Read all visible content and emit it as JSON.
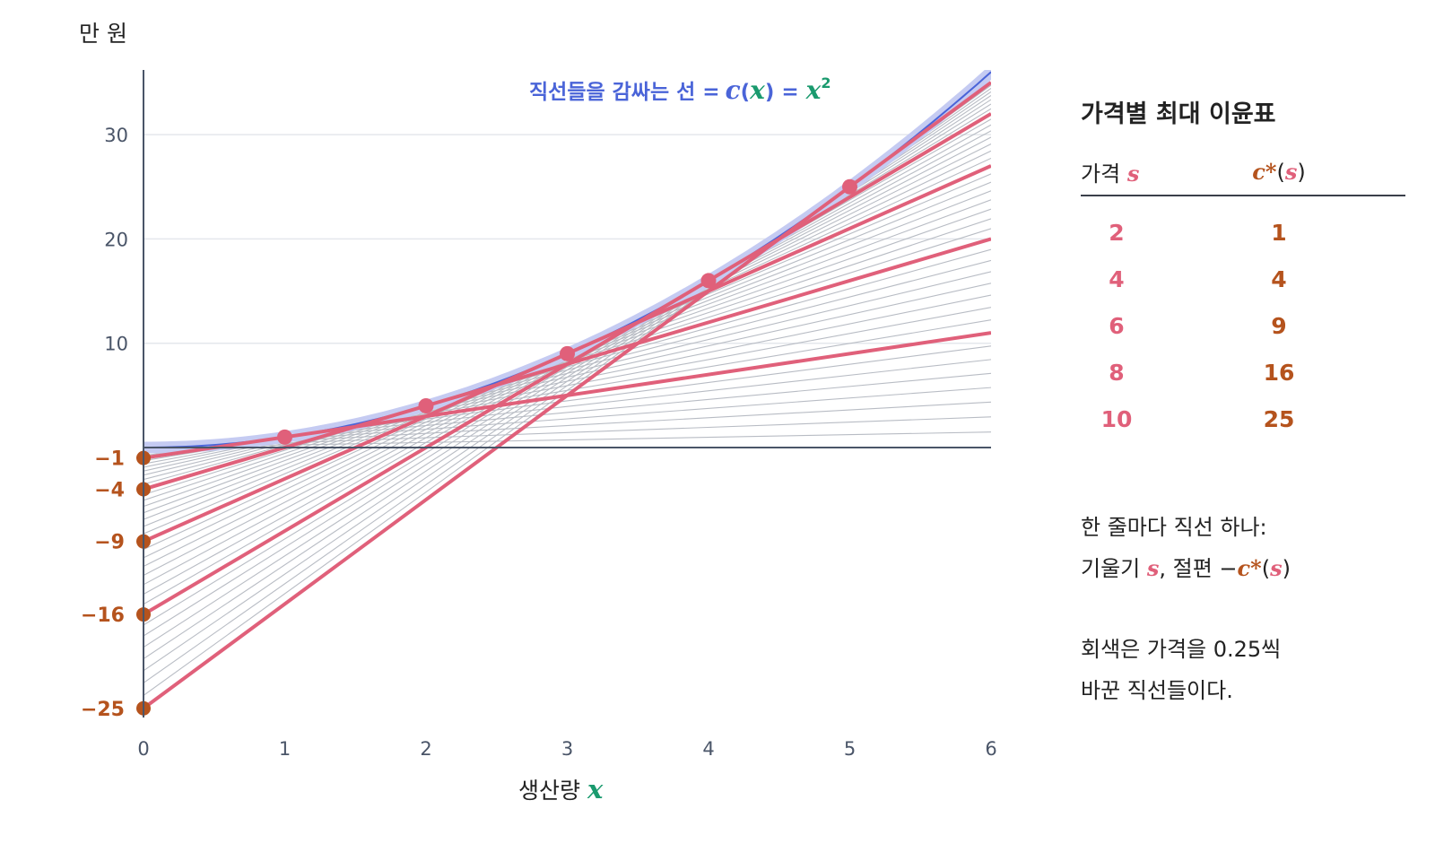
{
  "chart_data": {
    "type": "line",
    "unit_label": "만 원",
    "xlabel": "생산량",
    "xlabel_var": "x",
    "xlim": [
      0,
      6
    ],
    "ylim": [
      -25,
      36
    ],
    "x_ticks": [
      "0",
      "1",
      "2",
      "3",
      "4",
      "5",
      "6"
    ],
    "y_ticks": [
      "10",
      "20",
      "30"
    ],
    "grid": "horizontal",
    "envelope": {
      "label": "직선들을 감싸는 선 =",
      "c": "c",
      "x": "x",
      "exp": "2",
      "function": "c(x) = x²"
    },
    "highlighted_lines": [
      {
        "slope": 2,
        "intercept": -1,
        "tangent_x": 1,
        "tangent_y": 1
      },
      {
        "slope": 4,
        "intercept": -4,
        "tangent_x": 2,
        "tangent_y": 4
      },
      {
        "slope": 6,
        "intercept": -9,
        "tangent_x": 3,
        "tangent_y": 9
      },
      {
        "slope": 8,
        "intercept": -16,
        "tangent_x": 4,
        "tangent_y": 16
      },
      {
        "slope": 10,
        "intercept": -25,
        "tangent_x": 5,
        "tangent_y": 25
      }
    ],
    "intercept_labels": [
      "−1",
      "−4",
      "−9",
      "−16",
      "−25"
    ],
    "gray_lines": {
      "slope_step": 0.25,
      "slope_min": 0.25,
      "slope_max": 10
    },
    "colors": {
      "highlight": "#e0607a",
      "gray": "#b8bcc4",
      "envelope": "#c5cbf2",
      "envelope_thin": "#4a64d8",
      "intercept": "#b5531d",
      "variable_x": "#1a9a6e",
      "axis": "#4a5568"
    }
  },
  "panel": {
    "title": "가격별 최대 이윤표",
    "col1_label": "가격",
    "col1_var": "s",
    "col2_c": "c*",
    "col2_open": "(",
    "col2_s": "s",
    "col2_close": ")",
    "rows": [
      {
        "s": "2",
        "c": "1"
      },
      {
        "s": "4",
        "c": "4"
      },
      {
        "s": "6",
        "c": "9"
      },
      {
        "s": "8",
        "c": "16"
      },
      {
        "s": "10",
        "c": "25"
      }
    ],
    "note1_line1": "한 줄마다 직선 하나:",
    "note1_line2_a": "기울기 ",
    "note1_line2_s": "s",
    "note1_line2_b": ", 절편 −",
    "note1_line2_c": "c*",
    "note1_line2_open": "(",
    "note1_line2_s2": "s",
    "note1_line2_close": ")",
    "note2_line1": "회색은 가격을 0.25씩",
    "note2_line2": "바꾼 직선들이다."
  }
}
